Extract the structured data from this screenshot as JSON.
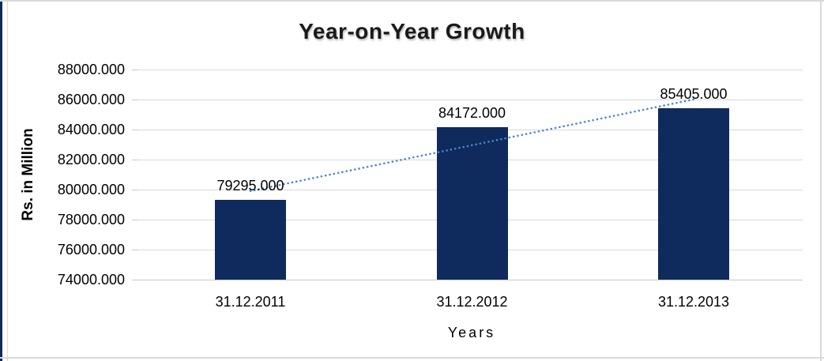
{
  "frame": {
    "border_color": "#D9D9D9",
    "accent_strip_color": "#10295A",
    "background": "#FFFFFF"
  },
  "chart_data": {
    "type": "bar",
    "title": "Year-on-Year Growth",
    "xlabel": "Years",
    "ylabel": "Rs. in Million",
    "categories": [
      "31.12.2011",
      "31.12.2012",
      "31.12.2013"
    ],
    "values": [
      79295,
      84172,
      85405
    ],
    "bar_labels": [
      "79295.000",
      "84172.000",
      "85405.000"
    ],
    "ylim": [
      74000,
      88000
    ],
    "ytick_step": 2000,
    "ytick_labels": [
      "74000.000",
      "76000.000",
      "78000.000",
      "80000.000",
      "82000.000",
      "84000.000",
      "86000.000",
      "88000.000"
    ],
    "grid": true,
    "legend": "none",
    "bar_color": "#0F2A5C",
    "grid_color": "#D9D9D9",
    "axis_line_color": "#C8C8C8",
    "trendline": {
      "kind": "linear",
      "style": "dotted",
      "color": "#4E86C8"
    }
  }
}
